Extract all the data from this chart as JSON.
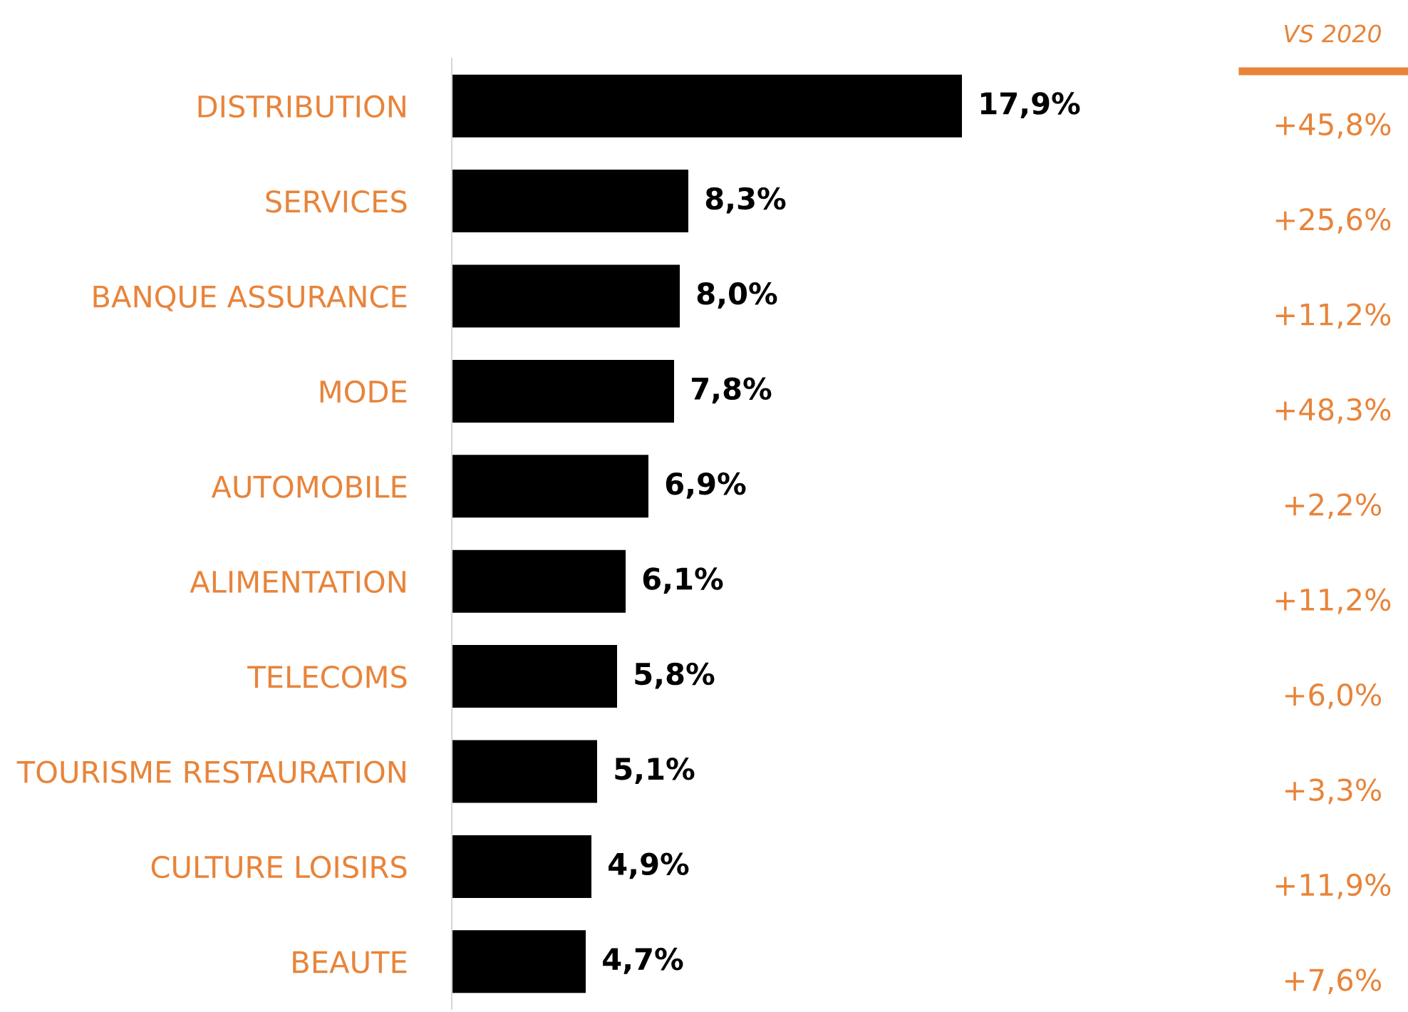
{
  "chart_data": {
    "type": "bar",
    "orientation": "horizontal",
    "tick_labels": "y",
    "grid": false,
    "categories": [
      "DISTRIBUTION",
      "SERVICES",
      "BANQUE ASSURANCE",
      "MODE",
      "AUTOMOBILE",
      "ALIMENTATION",
      "TELECOMS",
      "TOURISME RESTAURATION",
      "CULTURE LOISIRS",
      "BEAUTE"
    ],
    "series": [
      {
        "color": "#000000",
        "values": [
          17.9,
          8.3,
          8.0,
          7.8,
          6.9,
          6.1,
          5.8,
          5.1,
          4.9,
          4.7
        ],
        "value_labels": [
          "17,9%",
          "8,3%",
          "8,0%",
          "7,8%",
          "6,9%",
          "6,1%",
          "5,8%",
          "5,1%",
          "4,9%",
          "4,7%"
        ]
      }
    ],
    "annotations": [
      "VS 2020",
      "+45,8%",
      "+25,6%",
      "+11,2%",
      "+48,3%",
      "+2,2%",
      "+11,2%",
      "+6,0%",
      "+3,3%",
      "+11,9%",
      "+7,6%"
    ]
  }
}
